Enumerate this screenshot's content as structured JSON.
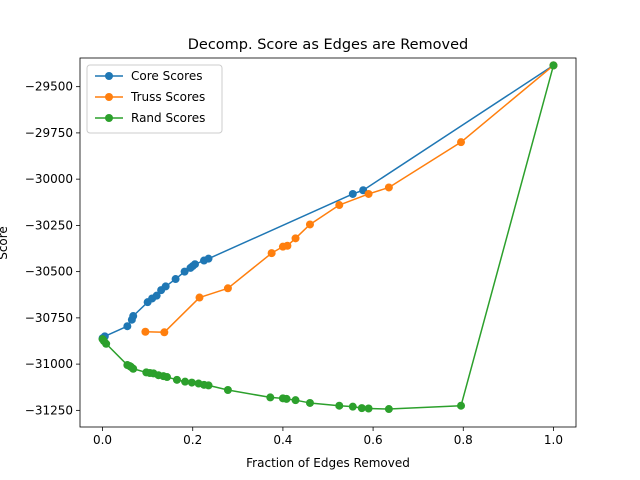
{
  "chart_data": {
    "type": "line",
    "title": "Decomp. Score as Edges are Removed",
    "xlabel": "Fraction of Edges Removed",
    "ylabel": "Score",
    "xlim": [
      -0.05,
      1.05
    ],
    "ylim": [
      -31340,
      -29345
    ],
    "xticks": [
      0.0,
      0.2,
      0.4,
      0.6,
      0.8,
      1.0
    ],
    "xtick_labels": [
      "0.0",
      "0.2",
      "0.4",
      "0.6",
      "0.8",
      "1.0"
    ],
    "yticks": [
      -31250,
      -31000,
      -30750,
      -30500,
      -30250,
      -30000,
      -29750,
      -29500
    ],
    "ytick_labels": [
      "−31250",
      "−31000",
      "−30750",
      "−30500",
      "−30250",
      "−30000",
      "−29750",
      "−29500"
    ],
    "grid": false,
    "legend_position": "upper-left",
    "series": [
      {
        "name": "Core Scores",
        "color": "#1f77b4",
        "x": [
          0.0,
          0.005,
          0.055,
          0.065,
          0.068,
          0.1,
          0.11,
          0.12,
          0.13,
          0.14,
          0.162,
          0.182,
          0.195,
          0.2,
          0.205,
          0.225,
          0.235,
          0.555,
          0.578,
          1.0
        ],
        "y": [
          -30860,
          -30850,
          -30795,
          -30760,
          -30740,
          -30665,
          -30645,
          -30630,
          -30600,
          -30580,
          -30540,
          -30500,
          -30480,
          -30470,
          -30460,
          -30440,
          -30430,
          -30080,
          -30060,
          -29385
        ]
      },
      {
        "name": "Truss Scores",
        "color": "#ff7f0e",
        "x": [
          0.095,
          0.137,
          0.215,
          0.278,
          0.375,
          0.4,
          0.41,
          0.428,
          0.46,
          0.525,
          0.59,
          0.635,
          0.795,
          1.0
        ],
        "y": [
          -30825,
          -30828,
          -30640,
          -30590,
          -30400,
          -30365,
          -30360,
          -30320,
          -30245,
          -30140,
          -30080,
          -30045,
          -29800,
          -29385
        ]
      },
      {
        "name": "Rand Scores",
        "color": "#2ca02c",
        "x": [
          0.0,
          0.003,
          0.008,
          0.055,
          0.06,
          0.063,
          0.068,
          0.097,
          0.105,
          0.113,
          0.124,
          0.135,
          0.143,
          0.165,
          0.183,
          0.198,
          0.213,
          0.225,
          0.235,
          0.278,
          0.372,
          0.4,
          0.408,
          0.428,
          0.46,
          0.525,
          0.555,
          0.575,
          0.59,
          0.635,
          0.795,
          1.0
        ],
        "y": [
          -30865,
          -30875,
          -30890,
          -31005,
          -31010,
          -31015,
          -31025,
          -31045,
          -31048,
          -31050,
          -31060,
          -31065,
          -31070,
          -31085,
          -31095,
          -31100,
          -31105,
          -31112,
          -31115,
          -31140,
          -31180,
          -31185,
          -31188,
          -31195,
          -31210,
          -31225,
          -31230,
          -31238,
          -31240,
          -31243,
          -31225,
          -29385
        ]
      }
    ]
  }
}
